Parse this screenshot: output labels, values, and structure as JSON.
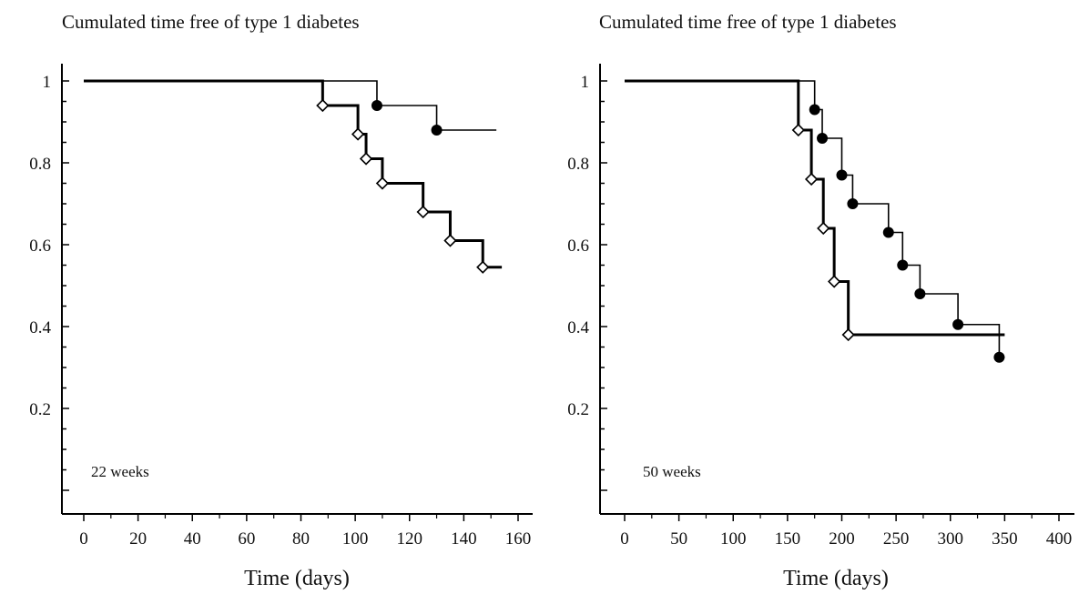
{
  "chart_data": [
    {
      "type": "line",
      "step": true,
      "title": "Cumulated time free of type 1 diabetes",
      "xlabel": "Time (days)",
      "ylabel": "",
      "annotation": "22 weeks",
      "xlim": [
        -5,
        165
      ],
      "ylim": [
        -0.05,
        1.05
      ],
      "xticks": [
        0,
        20,
        40,
        60,
        80,
        100,
        120,
        140,
        160
      ],
      "yticks": [
        0.2,
        0.4,
        0.6,
        0.8,
        1
      ],
      "ytick_labels": [
        "0.2",
        "0.4",
        "0.6",
        "0.8",
        "1"
      ],
      "series": [
        {
          "marker": "filled-circle",
          "color": "#000000",
          "points": [
            [
              108,
              0.94
            ],
            [
              130,
              0.88
            ]
          ],
          "end_x": 152
        },
        {
          "marker": "open-diamond",
          "color": "#000000",
          "points": [
            [
              88,
              0.94
            ],
            [
              101,
              0.87
            ],
            [
              104,
              0.81
            ],
            [
              110,
              0.75
            ],
            [
              125,
              0.68
            ],
            [
              135,
              0.61
            ],
            [
              147,
              0.545
            ]
          ],
          "end_x": 154
        }
      ]
    },
    {
      "type": "line",
      "step": true,
      "title": "Cumulated time free of type 1 diabetes",
      "xlabel": "Time (days)",
      "ylabel": "",
      "annotation": "50 weeks",
      "xlim": [
        -15,
        410
      ],
      "ylim": [
        -0.05,
        1.05
      ],
      "xticks": [
        0,
        50,
        100,
        150,
        200,
        250,
        300,
        350,
        400
      ],
      "yticks": [
        0.2,
        0.4,
        0.6,
        0.8,
        1
      ],
      "ytick_labels": [
        "0.2",
        "0.4",
        "0.6",
        "0.8",
        "1"
      ],
      "series": [
        {
          "marker": "filled-circle",
          "color": "#000000",
          "points": [
            [
              175,
              0.93
            ],
            [
              182,
              0.86
            ],
            [
              200,
              0.77
            ],
            [
              210,
              0.7
            ],
            [
              243,
              0.63
            ],
            [
              256,
              0.55
            ],
            [
              272,
              0.48
            ],
            [
              307,
              0.405
            ],
            [
              345,
              0.325
            ]
          ],
          "end_x": 350
        },
        {
          "marker": "open-diamond",
          "color": "#000000",
          "points": [
            [
              160,
              0.88
            ],
            [
              172,
              0.76
            ],
            [
              183,
              0.64
            ],
            [
              193,
              0.51
            ],
            [
              206,
              0.38
            ]
          ],
          "end_x": 350
        }
      ]
    }
  ]
}
